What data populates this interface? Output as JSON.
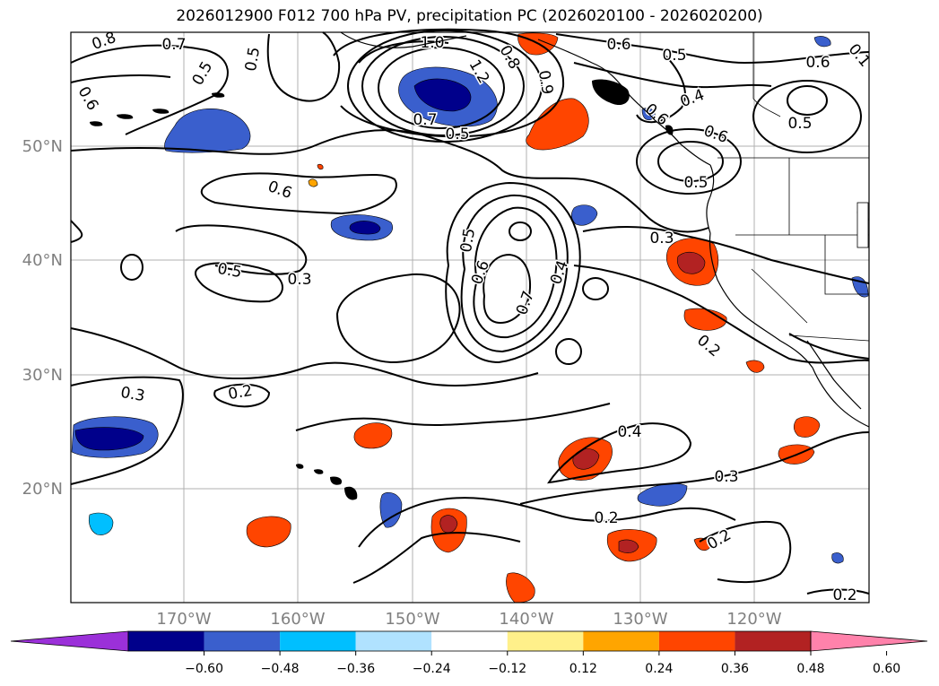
{
  "title": "2026012900 F012 700 hPa PV, precipitation PC (2026020100 - 2026020200)",
  "map": {
    "lon_labels": [
      "170°W",
      "160°W",
      "150°W",
      "140°W",
      "130°W",
      "120°W"
    ],
    "lat_labels": [
      "50°N",
      "40°N",
      "30°N",
      "20°N"
    ],
    "contour_labels": [
      {
        "text": "0.8"
      },
      {
        "text": "0.7"
      },
      {
        "text": "0.5"
      },
      {
        "text": "0.5"
      },
      {
        "text": "1.0"
      },
      {
        "text": "1.2"
      },
      {
        "text": "0.8"
      },
      {
        "text": "0.9"
      },
      {
        "text": "0.6"
      },
      {
        "text": "0.5"
      },
      {
        "text": "0.6"
      },
      {
        "text": "0.1"
      },
      {
        "text": "0.6"
      },
      {
        "text": "0.7"
      },
      {
        "text": "0.5"
      },
      {
        "text": "0.4"
      },
      {
        "text": "0.6"
      },
      {
        "text": "0.5"
      },
      {
        "text": "0.6"
      },
      {
        "text": "0.5"
      },
      {
        "text": "0.6"
      },
      {
        "text": "0.5"
      },
      {
        "text": "0.6"
      },
      {
        "text": "0.7"
      },
      {
        "text": "0.4"
      },
      {
        "text": "0.3"
      },
      {
        "text": "0.5"
      },
      {
        "text": "0.3"
      },
      {
        "text": "0.2"
      },
      {
        "text": "0.3"
      },
      {
        "text": "0.2"
      },
      {
        "text": "0.4"
      },
      {
        "text": "0.3"
      },
      {
        "text": "0.2"
      },
      {
        "text": "0.2"
      },
      {
        "text": "0.2"
      }
    ]
  },
  "colorbar": {
    "ticks": [
      "−0.60",
      "−0.48",
      "−0.36",
      "−0.24",
      "−0.12",
      "0.12",
      "0.24",
      "0.36",
      "0.48",
      "0.60"
    ],
    "colors": [
      "#9b30d9",
      "#00008b",
      "#3a5fcd",
      "#00bfff",
      "#b0e2ff",
      "#ffffff",
      "#fff08a",
      "#ffa500",
      "#ff4500",
      "#b22222",
      "#ff82ab"
    ]
  },
  "colors": {
    "strong_negative": "#00008b",
    "negative": "#3a5fcd",
    "weak_negative": "#00bfff",
    "positive_weak": "#ffa500",
    "positive": "#ff4500",
    "strong_positive": "#b22222"
  }
}
